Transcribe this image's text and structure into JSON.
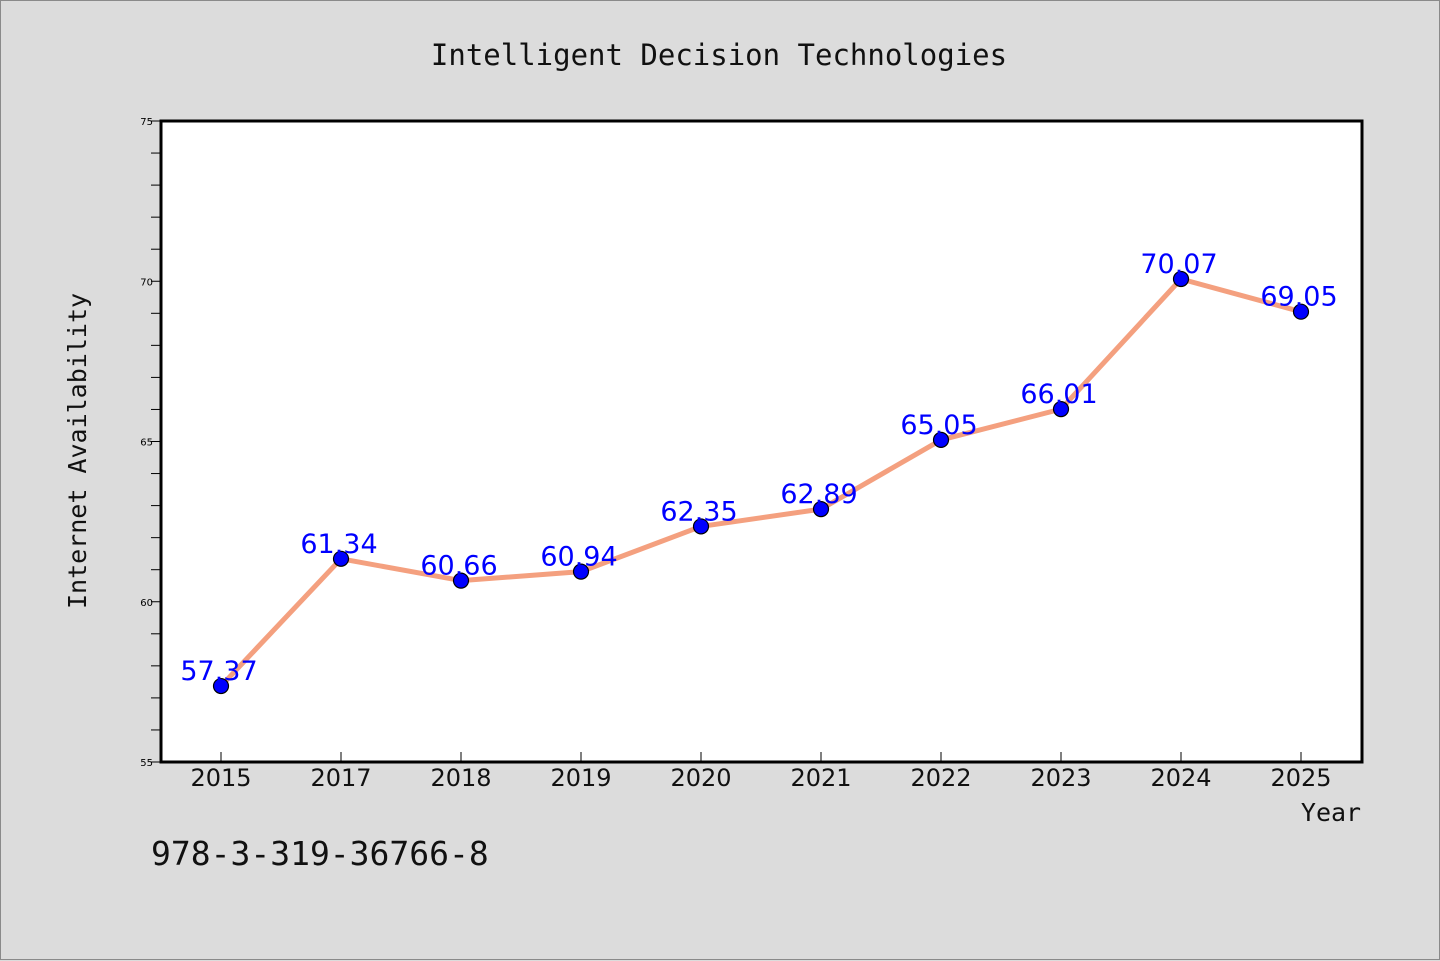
{
  "chart_data": {
    "type": "line",
    "title": "Intelligent Decision Technologies",
    "xlabel": "Year",
    "ylabel": "Internet Availability",
    "categories": [
      "2015",
      "2017",
      "2018",
      "2019",
      "2020",
      "2021",
      "2022",
      "2023",
      "2024",
      "2025"
    ],
    "series": [
      {
        "values": [
          57.37,
          61.34,
          60.66,
          60.94,
          62.35,
          62.89,
          65.05,
          66.01,
          70.07,
          69.05
        ]
      }
    ],
    "data_labels": [
      "57.37",
      "61.34",
      "60.66",
      "60.94",
      "62.35",
      "62.89",
      "65.05",
      "66.01",
      "70.07",
      "69.05"
    ],
    "ylim": [
      55,
      75
    ],
    "yticks": [
      "55",
      "60",
      "65",
      "70",
      "75"
    ],
    "grid": false,
    "legend": "none",
    "colors": {
      "line": "#f4a07f",
      "marker": "#0000ff",
      "label": "#0000ff",
      "background": "#dcdcdc",
      "plot_bg": "#ffffff"
    }
  },
  "footer": {
    "isbn": "978-3-319-36766-8"
  }
}
